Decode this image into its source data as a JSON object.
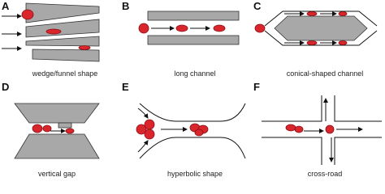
{
  "panels": [
    {
      "letter": "A",
      "caption": "wedge/funnel shape"
    },
    {
      "letter": "B",
      "caption": "long channel"
    },
    {
      "letter": "C",
      "caption": "conical-shaped channel"
    },
    {
      "letter": "D",
      "caption": "vertical gap"
    },
    {
      "letter": "E",
      "caption": "hyperbolic shape"
    },
    {
      "letter": "F",
      "caption": "cross-road"
    }
  ]
}
